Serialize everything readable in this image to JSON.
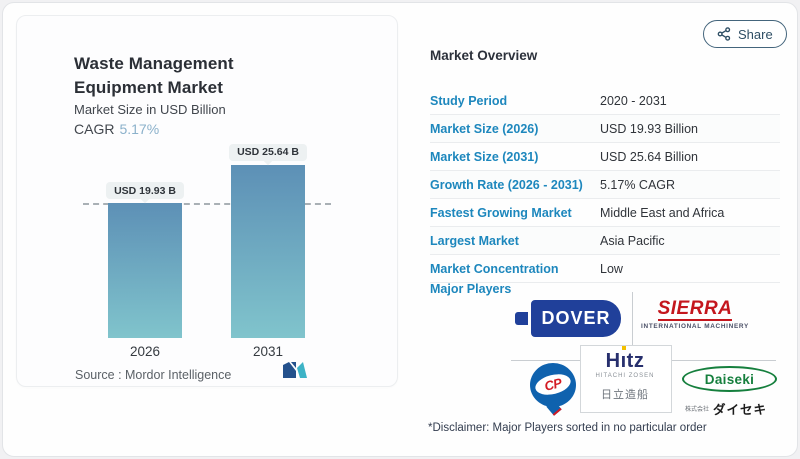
{
  "share": {
    "label": "Share"
  },
  "left_card": {
    "title": "Waste Management Equipment Market",
    "subtitle": "Market Size in USD Billion",
    "cagr_label": "CAGR",
    "cagr_value": "5.17%",
    "source_label": "Source :  Mordor Intelligence"
  },
  "chart_data": {
    "type": "bar",
    "categories": [
      "2026",
      "2031"
    ],
    "values": [
      19.93,
      25.64
    ],
    "value_labels": [
      "USD 19.93 B",
      "USD 25.64 B"
    ],
    "title": "Waste Management Equipment Market",
    "ylabel": "Market Size in USD Billion",
    "annotations": [
      "CAGR 5.17%"
    ],
    "baseline_value": 19.93,
    "grid": false,
    "legend": false,
    "bar_gradient": [
      "#5d90b6",
      "#80c4cc"
    ]
  },
  "overview": {
    "title": "Market Overview",
    "rows": [
      {
        "label": "Study Period",
        "value": "2020 - 2031"
      },
      {
        "label": "Market Size (2026)",
        "value": "USD 19.93 Billion"
      },
      {
        "label": "Market Size (2031)",
        "value": "USD 25.64 Billion"
      },
      {
        "label": "Growth Rate (2026 - 2031)",
        "value": "5.17% CAGR"
      },
      {
        "label": "Fastest Growing Market",
        "value": "Middle East and Africa"
      },
      {
        "label": "Largest Market",
        "value": "Asia Pacific"
      },
      {
        "label": "Market Concentration",
        "value": "Low"
      }
    ],
    "major_players_label": "Major Players",
    "disclaimer": "*Disclaimer: Major Players sorted in no particular order"
  },
  "logos": {
    "dover": {
      "text": "DOVER"
    },
    "sierra": {
      "line1": "SIERRA",
      "line2": "INTERNATIONAL MACHINERY"
    },
    "cp": {
      "text": "CP"
    },
    "hitz": {
      "line1": "Hitz",
      "line2": "HITACHI ZOSEN",
      "line3": "日立造船"
    },
    "daiseki": {
      "line1": "Daiseki",
      "line2": "株式会社",
      "line3": "ダイセキ"
    }
  },
  "colors": {
    "accent_blue": "#1d87bd",
    "cagr_blue": "#8bb1cb",
    "bar_top": "#5d90b6",
    "bar_bottom": "#80c4cc",
    "dover_navy": "#20409a",
    "sierra_red": "#c4161d",
    "cp_blue": "#0f62ae",
    "cp_red": "#d31a23",
    "hitz_navy": "#272f6d",
    "daiseki_green": "#157f3d",
    "share_slate": "#2e4e64"
  }
}
